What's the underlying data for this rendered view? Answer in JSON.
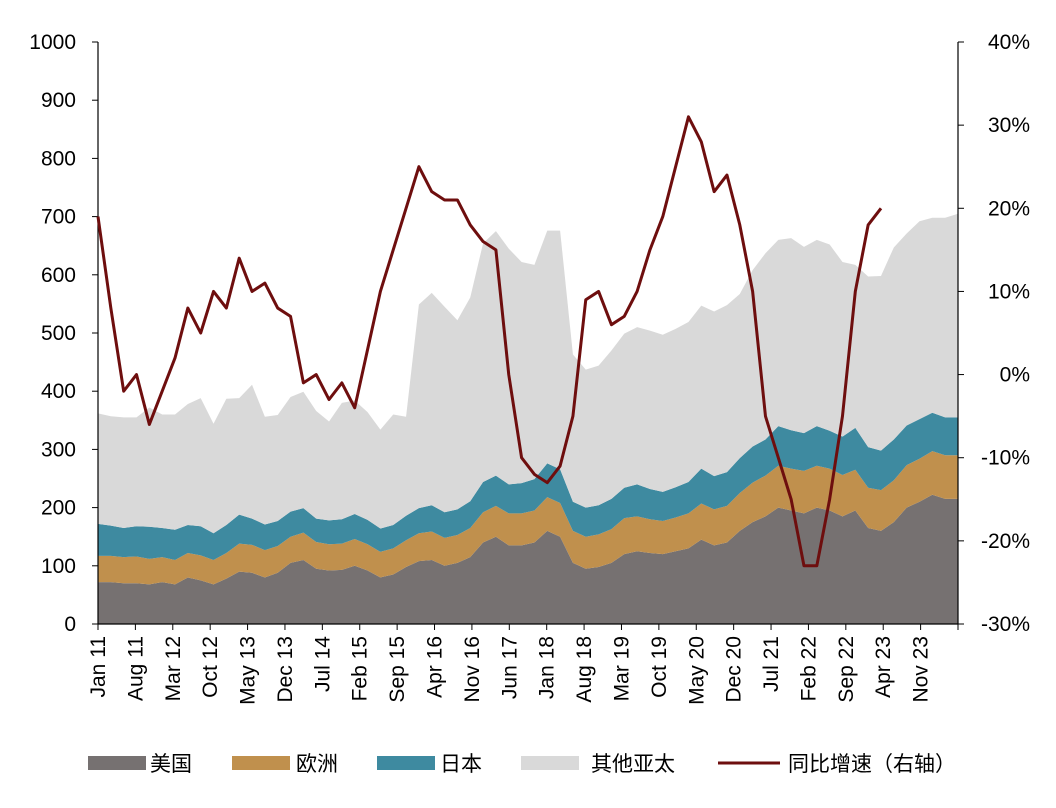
{
  "chart_data": {
    "type": "area",
    "stacked": true,
    "secondary_line": true,
    "x_tick_labels": [
      "Jan 11",
      "Aug 11",
      "Mar 12",
      "Oct 12",
      "May 13",
      "Dec 13",
      "Jul 14",
      "Feb 15",
      "Sep 15",
      "Apr 16",
      "Nov 16",
      "Jun 17",
      "Jan 18",
      "Aug 18",
      "Mar 19",
      "Oct 19",
      "May 20",
      "Dec 20",
      "Jul 21",
      "Feb 22",
      "Sep 22",
      "Apr 23",
      "Nov 23"
    ],
    "left_axis": {
      "ylim": [
        0,
        1000
      ],
      "ticks": [
        "0",
        "100",
        "200",
        "300",
        "400",
        "500",
        "600",
        "700",
        "800",
        "900",
        "1000"
      ]
    },
    "right_axis": {
      "ylim": [
        -30,
        40
      ],
      "ticks": [
        "-30%",
        "-20%",
        "-10%",
        "0%",
        "10%",
        "20%",
        "30%",
        "40%"
      ]
    },
    "legend": [
      "美国",
      "欧洲",
      "日本",
      "其他亚太",
      "同比增速（右轴）"
    ],
    "legend_placement": "bottom",
    "grid": false,
    "colors": {
      "us": "#767171",
      "europe": "#C0904D",
      "japan": "#3E8AA0",
      "apac": "#D9D9D9",
      "growth": "#6E0E0E"
    },
    "series": [
      {
        "name": "美国",
        "values": [
          72,
          72,
          70,
          70,
          68,
          72,
          68,
          80,
          75,
          68,
          78,
          90,
          88,
          80,
          88,
          105,
          110,
          95,
          92,
          93,
          100,
          92,
          80,
          85,
          98,
          108,
          110,
          100,
          105,
          115,
          140,
          150,
          135,
          135,
          140,
          160,
          150,
          105,
          95,
          98,
          105,
          120,
          125,
          122,
          120,
          125,
          130,
          145,
          135,
          140,
          160,
          175,
          185,
          200,
          195,
          190,
          200,
          195,
          185,
          195,
          165,
          160,
          175,
          200,
          210,
          222,
          215,
          215
        ]
      },
      {
        "name": "欧洲",
        "values": [
          45,
          45,
          45,
          46,
          44,
          43,
          42,
          42,
          43,
          42,
          44,
          48,
          48,
          47,
          46,
          45,
          47,
          46,
          45,
          45,
          46,
          45,
          44,
          45,
          46,
          48,
          49,
          48,
          48,
          50,
          52,
          53,
          55,
          55,
          55,
          58,
          58,
          55,
          55,
          56,
          58,
          62,
          60,
          58,
          57,
          58,
          60,
          62,
          62,
          63,
          65,
          68,
          70,
          72,
          72,
          73,
          72,
          72,
          71,
          70,
          69,
          70,
          72,
          73,
          74,
          75,
          75,
          75
        ]
      },
      {
        "name": "日本",
        "values": [
          55,
          52,
          50,
          52,
          55,
          50,
          52,
          48,
          50,
          46,
          48,
          50,
          45,
          44,
          43,
          43,
          42,
          40,
          41,
          42,
          43,
          42,
          40,
          40,
          42,
          43,
          45,
          44,
          44,
          46,
          52,
          52,
          50,
          52,
          54,
          58,
          58,
          50,
          50,
          50,
          52,
          52,
          55,
          52,
          50,
          52,
          54,
          60,
          57,
          58,
          60,
          62,
          62,
          68,
          66,
          65,
          68,
          65,
          66,
          72,
          70,
          68,
          70,
          68,
          68,
          66,
          65,
          65
        ]
      },
      {
        "name": "其他亚太",
        "values": [
          190,
          188,
          190,
          187,
          205,
          195,
          198,
          208,
          220,
          188,
          217,
          200,
          230,
          185,
          182,
          197,
          200,
          185,
          170,
          200,
          195,
          185,
          170,
          190,
          170,
          350,
          365,
          353,
          325,
          350,
          410,
          420,
          405,
          380,
          368,
          400,
          410,
          253,
          237,
          240,
          255,
          265,
          270,
          272,
          270,
          272,
          275,
          280,
          283,
          287,
          282,
          303,
          320,
          320,
          330,
          320,
          320,
          320,
          300,
          280,
          293,
          300,
          330,
          330,
          340,
          335,
          343,
          350
        ]
      },
      {
        "name": "同比增速（右轴）",
        "axis": "right",
        "values": [
          19,
          8,
          -2,
          0,
          -6,
          -2,
          2,
          8,
          5,
          10,
          8,
          14,
          10,
          11,
          8,
          7,
          -1,
          0,
          -3,
          -1,
          -4,
          3,
          10,
          15,
          20,
          25,
          22,
          21,
          21,
          18,
          16,
          15,
          0,
          -10,
          -12,
          -13,
          -11,
          -5,
          9,
          10,
          6,
          7,
          10,
          15,
          19,
          25,
          31,
          28,
          22,
          24,
          18,
          10,
          -5,
          -10,
          -15,
          -23,
          -23,
          -15,
          -5,
          10,
          18,
          20,
          null,
          null,
          null,
          null,
          null,
          null
        ]
      }
    ]
  }
}
